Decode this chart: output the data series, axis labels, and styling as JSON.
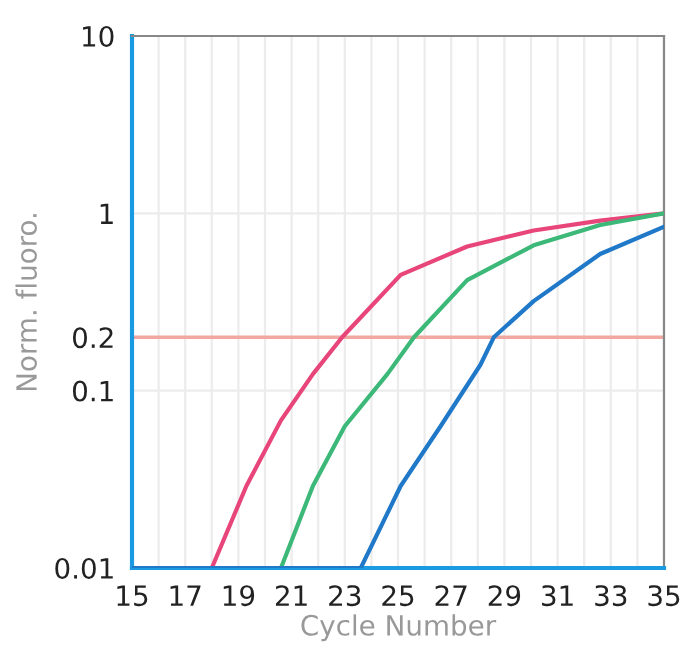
{
  "chart_data": {
    "type": "line",
    "xlabel": "Cycle Number",
    "ylabel": "Norm. fluoro.",
    "xlim": [
      15,
      35
    ],
    "ylim": [
      0.01,
      10
    ],
    "log": "y",
    "xticks": [
      15,
      {
        "value": 16,
        "label": null
      },
      17,
      {
        "value": 18,
        "label": null
      },
      19,
      {
        "value": 20,
        "label": null
      },
      21,
      {
        "value": 22,
        "label": null
      },
      23,
      {
        "value": 24,
        "label": null
      },
      25,
      {
        "value": 26,
        "label": null
      },
      27,
      {
        "value": 28,
        "label": null
      },
      29,
      {
        "value": 30,
        "label": null
      },
      31,
      {
        "value": 32,
        "label": null
      },
      33,
      {
        "value": 34,
        "label": null
      },
      35
    ],
    "yticks": [
      0.01,
      0.1,
      0.2,
      1,
      10
    ],
    "grid": true,
    "marker": "none",
    "line_style": "solid",
    "ref_lines": [
      {
        "axis": "y",
        "value": 0.2,
        "color": "#f0a8a0"
      }
    ],
    "series": [
      {
        "color": "#e8457a",
        "x": [
          15,
          18.0,
          19.3,
          20.6,
          21.8,
          22.9,
          25.1,
          27.6,
          30.1,
          32.6,
          35
        ],
        "values": [
          0.01,
          0.01,
          0.029,
          0.068,
          0.124,
          0.2,
          0.45,
          0.65,
          0.8,
          0.91,
          1.0
        ]
      },
      {
        "color": "#3cb878",
        "x": [
          15,
          20.6,
          21.8,
          23.0,
          24.6,
          25.6,
          27.6,
          30.1,
          32.6,
          35
        ],
        "values": [
          0.01,
          0.01,
          0.029,
          0.063,
          0.124,
          0.2,
          0.42,
          0.66,
          0.86,
          1.0
        ]
      },
      {
        "color": "#1f78c8",
        "x": [
          15,
          23.6,
          25.1,
          26.6,
          28.1,
          28.6,
          30.1,
          32.6,
          35
        ],
        "values": [
          0.01,
          0.01,
          0.029,
          0.063,
          0.14,
          0.2,
          0.32,
          0.59,
          0.84
        ]
      }
    ]
  }
}
